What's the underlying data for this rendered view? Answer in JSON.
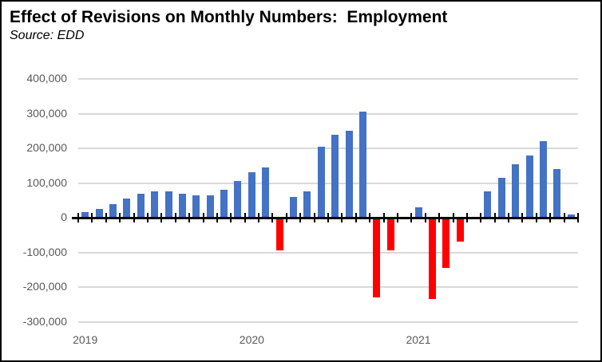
{
  "header": {
    "title": "Effect of Revisions on Monthly Numbers:  Employment",
    "subtitle": "Source: EDD"
  },
  "chart_data": {
    "type": "bar",
    "title": "Effect of Revisions on Monthly Numbers:  Employment",
    "subtitle": "Source: EDD",
    "categories": [
      "2019-01",
      "2019-02",
      "2019-03",
      "2019-04",
      "2019-05",
      "2019-06",
      "2019-07",
      "2019-08",
      "2019-09",
      "2019-10",
      "2019-11",
      "2019-12",
      "2020-01",
      "2020-02",
      "2020-03",
      "2020-04",
      "2020-05",
      "2020-06",
      "2020-07",
      "2020-08",
      "2020-09",
      "2020-10",
      "2020-11",
      "2020-12",
      "2021-01",
      "2021-02",
      "2021-03",
      "2021-04",
      "2021-05",
      "2021-06",
      "2021-07",
      "2021-08",
      "2021-09",
      "2021-10",
      "2021-11",
      "2021-12"
    ],
    "values": [
      15000,
      25000,
      40000,
      55000,
      70000,
      75000,
      75000,
      70000,
      65000,
      65000,
      80000,
      105000,
      130000,
      145000,
      -95000,
      60000,
      75000,
      205000,
      240000,
      250000,
      305000,
      -230000,
      -95000,
      0,
      30000,
      -235000,
      -145000,
      -70000,
      0,
      75000,
      115000,
      155000,
      180000,
      220000,
      140000,
      10000
    ],
    "xlabel": "",
    "ylabel": "",
    "ylim": [
      -300000,
      400000
    ],
    "ytick_values": [
      400000,
      300000,
      200000,
      100000,
      0,
      -100000,
      -200000,
      -300000
    ],
    "ytick_labels": [
      "400,000",
      "300,000",
      "200,000",
      "100,000",
      "0",
      "-100,000",
      "-200,000",
      "-300,000"
    ],
    "xtick_labels": [
      "2019",
      "2020",
      "2021"
    ],
    "xtick_label_month_index": [
      0,
      12,
      24
    ],
    "grid": true,
    "legend_position": "none",
    "positive_color": "#4472C4",
    "negative_color": "#FF0000",
    "gridline_color": "#D9D9D9",
    "axis_color": "#000000",
    "tick_label_color": "#595959"
  }
}
